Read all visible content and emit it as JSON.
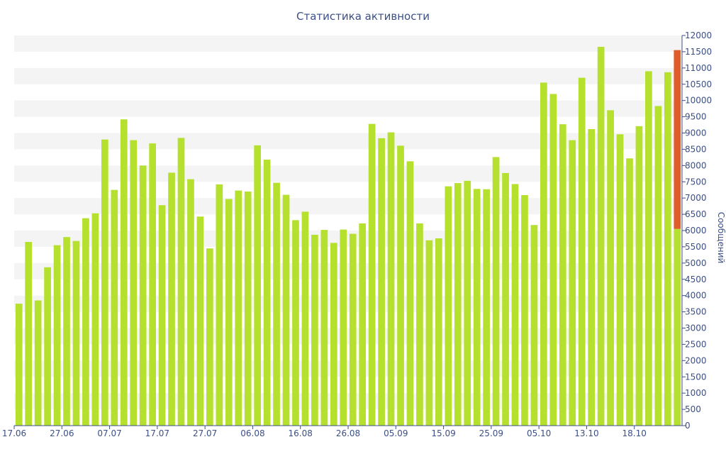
{
  "chart_data": {
    "type": "bar",
    "title": "Статистика активности",
    "xlabel": "",
    "ylabel": "Сообщений",
    "ylim": [
      0,
      12000
    ],
    "y_ticks": [
      0,
      500,
      1000,
      1500,
      2000,
      2500,
      3000,
      3500,
      4000,
      4500,
      5000,
      5500,
      6000,
      6500,
      7000,
      7500,
      8000,
      8500,
      9000,
      9500,
      10000,
      10500,
      11000,
      11500,
      12000
    ],
    "y_axis_side": "right",
    "grid": "alternating horizontal bands",
    "legend": "none",
    "categories": [
      "17.06",
      "",
      "",
      "",
      "",
      "27.06",
      "",
      "",
      "",
      "",
      "07.07",
      "",
      "",
      "",
      "",
      "17.07",
      "",
      "",
      "",
      "",
      "27.07",
      "",
      "",
      "",
      "",
      "06.08",
      "",
      "",
      "",
      "",
      "16.08",
      "",
      "",
      "",
      "",
      "26.08",
      "",
      "",
      "",
      "",
      "05.09",
      "",
      "",
      "",
      "",
      "15.09",
      "",
      "",
      "",
      "",
      "25.09",
      "",
      "",
      "",
      "",
      "05.10",
      "",
      "",
      "",
      "",
      "13.10",
      "",
      "",
      "",
      "",
      "18.10",
      "",
      "",
      "",
      ""
    ],
    "x_tick_labels": [
      "17.06",
      "27.06",
      "07.07",
      "17.07",
      "27.07",
      "06.08",
      "16.08",
      "26.08",
      "05.09",
      "15.09",
      "25.09",
      "05.10",
      "13.10",
      "18.10"
    ],
    "values": [
      3750,
      5650,
      3850,
      4870,
      5550,
      5800,
      5680,
      6380,
      6530,
      8800,
      7250,
      9420,
      8780,
      8000,
      8680,
      6780,
      7780,
      8850,
      7580,
      6430,
      5450,
      7420,
      6970,
      7230,
      7200,
      8620,
      8180,
      7470,
      7100,
      6320,
      6580,
      5870,
      6020,
      5620,
      6030,
      5900,
      6220,
      9280,
      8840,
      9020,
      8610,
      8130,
      6220,
      5700,
      5760,
      7360,
      7460,
      7530,
      7280,
      7270,
      8260,
      7770,
      7430,
      7090,
      6170,
      10550,
      10200,
      9270,
      8780,
      10700,
      9120,
      11650,
      9700,
      8960,
      8220,
      9210,
      10900,
      9830,
      10870,
      11550
    ],
    "last_bar_split": 6050,
    "colors": {
      "bar": "#b5e02e",
      "highlight": "#e05c2a",
      "band": "#f4f4f4",
      "axis": "#3b4f88"
    }
  }
}
